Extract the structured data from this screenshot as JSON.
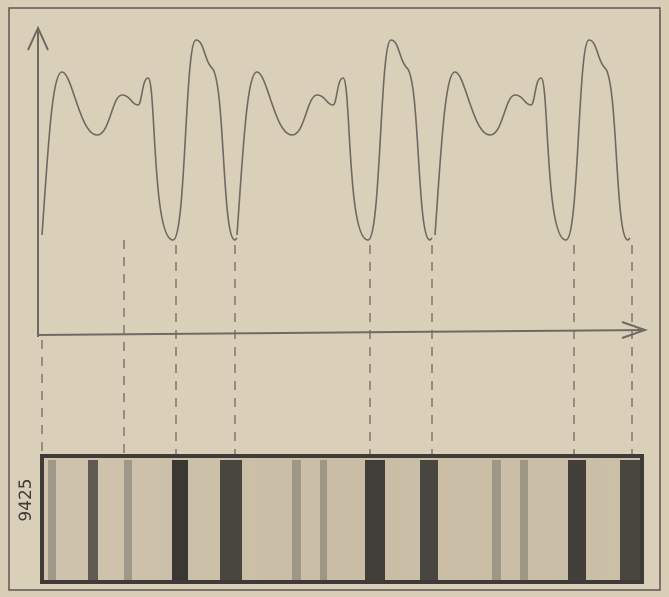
{
  "label": "9425"
}
